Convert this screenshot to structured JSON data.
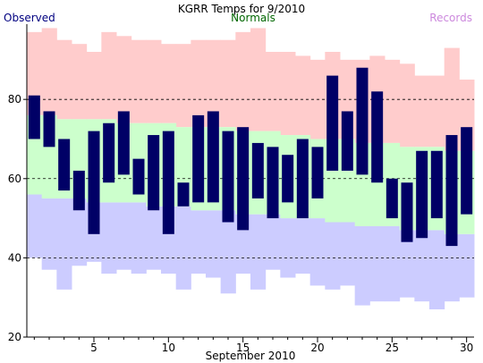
{
  "chart_data": {
    "type": "bar",
    "title": "KGRR Temps for 9/2010",
    "xlabel": "September 2010",
    "ylabel": "",
    "legend": {
      "observed": "Observed",
      "normals": "Normals",
      "records": "Records"
    },
    "xlim": [
      0.5,
      30.5
    ],
    "ylim": [
      20,
      99
    ],
    "yticks": [
      20,
      40,
      60,
      80
    ],
    "xticks": [
      5,
      10,
      15,
      20,
      25,
      30
    ],
    "gridlines_y": [
      40,
      60,
      80
    ],
    "grid": "dashed horizontal",
    "days": [
      1,
      2,
      3,
      4,
      5,
      6,
      7,
      8,
      9,
      10,
      11,
      12,
      13,
      14,
      15,
      16,
      17,
      18,
      19,
      20,
      21,
      22,
      23,
      24,
      25,
      26,
      27,
      28,
      29,
      30
    ],
    "observed_high": [
      81,
      77,
      70,
      62,
      72,
      74,
      77,
      65,
      71,
      72,
      59,
      76,
      77,
      72,
      73,
      69,
      68,
      66,
      70,
      68,
      86,
      77,
      88,
      82,
      60,
      59,
      67,
      67,
      71,
      73
    ],
    "observed_low": [
      70,
      68,
      57,
      52,
      46,
      59,
      61,
      56,
      52,
      46,
      53,
      54,
      54,
      49,
      47,
      55,
      50,
      54,
      50,
      55,
      62,
      62,
      61,
      59,
      50,
      44,
      45,
      50,
      43,
      51
    ],
    "normal_high": [
      76,
      76,
      75,
      75,
      75,
      75,
      74,
      74,
      74,
      74,
      73,
      73,
      73,
      73,
      72,
      72,
      72,
      71,
      71,
      70,
      70,
      70,
      69,
      69,
      69,
      68,
      68,
      68,
      67,
      67
    ],
    "normal_low": [
      56,
      55,
      55,
      55,
      54,
      54,
      54,
      54,
      53,
      53,
      53,
      52,
      52,
      52,
      51,
      51,
      51,
      50,
      50,
      50,
      49,
      49,
      48,
      48,
      48,
      47,
      47,
      47,
      46,
      46
    ],
    "record_high": [
      97,
      98,
      95,
      94,
      92,
      97,
      96,
      95,
      95,
      94,
      94,
      95,
      95,
      95,
      97,
      98,
      92,
      92,
      91,
      90,
      92,
      90,
      90,
      91,
      90,
      89,
      86,
      86,
      93,
      85
    ],
    "record_low": [
      40,
      37,
      32,
      38,
      39,
      36,
      37,
      36,
      37,
      36,
      32,
      36,
      35,
      31,
      36,
      32,
      37,
      35,
      36,
      33,
      32,
      33,
      28,
      29,
      29,
      30,
      29,
      27,
      29,
      30
    ],
    "colors": {
      "observed": "#000066",
      "normals": "#ccffcc",
      "record_high_band": "#ffcccc",
      "record_low_band": "#ccccff",
      "observed_label": "#000080",
      "normals_label": "#006600",
      "records_label": "#cc88dd",
      "gridline": "#000000",
      "axis": "#000000"
    }
  }
}
